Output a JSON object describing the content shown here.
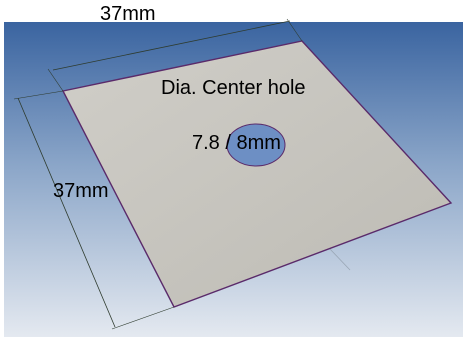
{
  "labels": {
    "top_dimension": "37mm",
    "left_dimension": "37mm",
    "hole_title": "Dia. Center hole",
    "hole_dimension": "7.8 / 8mm"
  },
  "colors": {
    "background_top": "#3f6aa3",
    "background_bottom": "#dfe6ef",
    "plate_fill": "#c6c4be",
    "plate_edge": "#5a2a6a",
    "dimension_line": "#2e3b2e",
    "hole_fill": "#6d8fc4",
    "text": "#000000"
  }
}
